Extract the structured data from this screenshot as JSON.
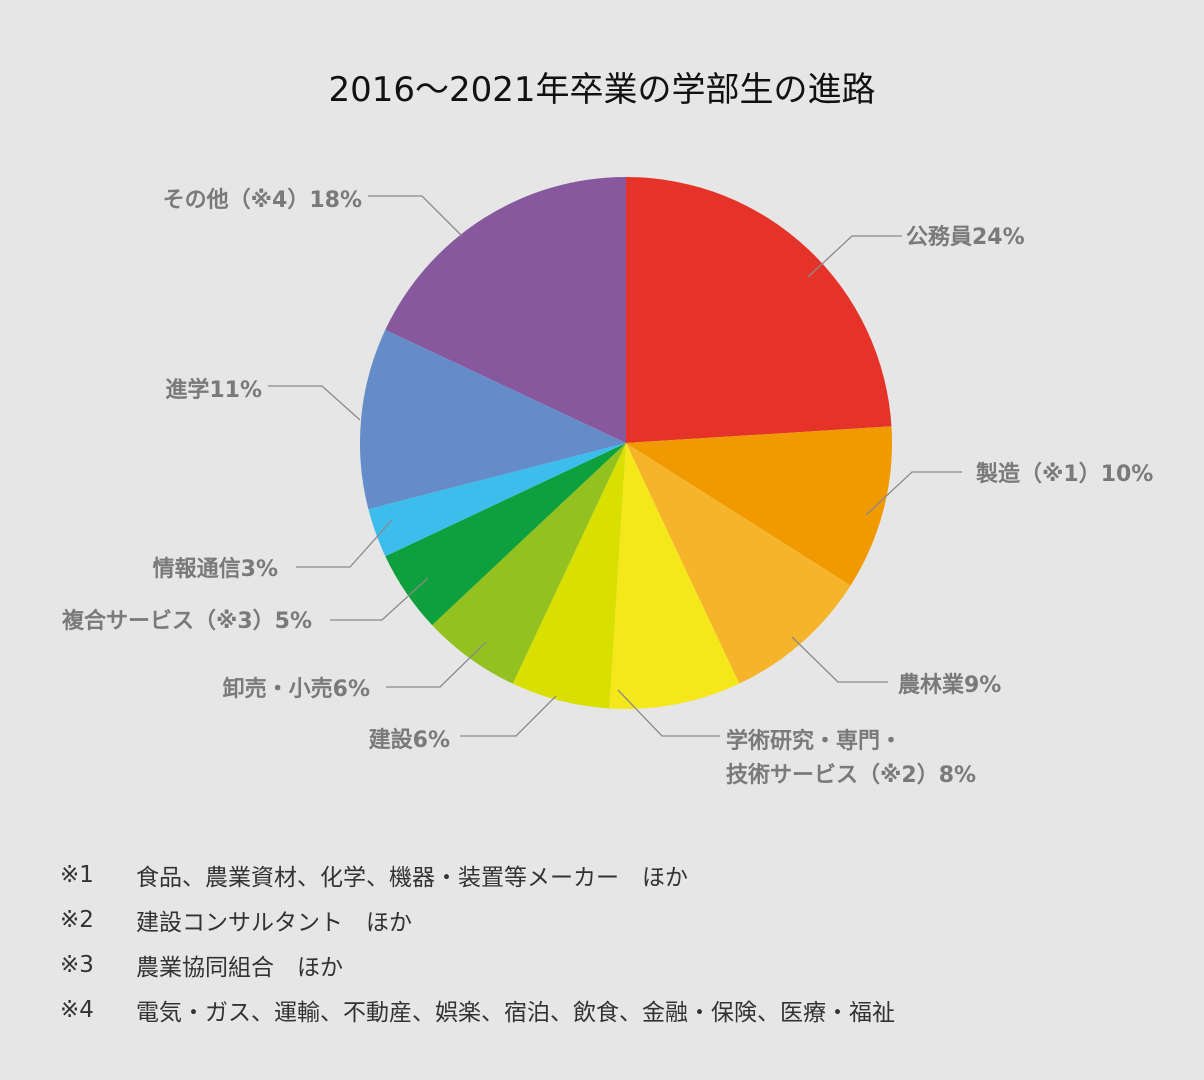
{
  "chart_data": {
    "type": "pie",
    "title": "2016〜2021年卒業の学部生の進路",
    "slices": [
      {
        "label": "公務員",
        "value": 24,
        "display": "公務員24%",
        "color": "#e63329"
      },
      {
        "label": "製造（※1）",
        "value": 10,
        "display": "製造（※1）10%",
        "color": "#f09a00"
      },
      {
        "label": "農林業",
        "value": 9,
        "display": "農林業9%",
        "color": "#f6b42a"
      },
      {
        "label": "学術研究・専門・技術サービス（※2）",
        "value": 8,
        "display": "学術研究・専門・\n技術サービス（※2）8%",
        "color": "#f5e81a"
      },
      {
        "label": "建設",
        "value": 6,
        "display": "建設6%",
        "color": "#d9e000"
      },
      {
        "label": "卸売・小売",
        "value": 6,
        "display": "卸売・小売6%",
        "color": "#93c11f"
      },
      {
        "label": "複合サービス（※3）",
        "value": 5,
        "display": "複合サービス（※3）5%",
        "color": "#0ea03c"
      },
      {
        "label": "情報通信",
        "value": 3,
        "display": "情報通信3%",
        "color": "#3dbdec"
      },
      {
        "label": "進学",
        "value": 11,
        "display": "進学11%",
        "color": "#648cc8"
      },
      {
        "label": "その他（※4）",
        "value": 18,
        "display": "その他（※4）18%",
        "color": "#88589f"
      }
    ]
  },
  "notes": [
    {
      "mark": "※1",
      "text": "食品、農業資材、化学、機器・装置等メーカー　ほか"
    },
    {
      "mark": "※2",
      "text": "建設コンサルタント　ほか"
    },
    {
      "mark": "※3",
      "text": "農業協同組合　ほか"
    },
    {
      "mark": "※4",
      "text": "電気・ガス、運輸、不動産、娯楽、宿泊、飲食、金融・保険、医療・福祉"
    }
  ]
}
